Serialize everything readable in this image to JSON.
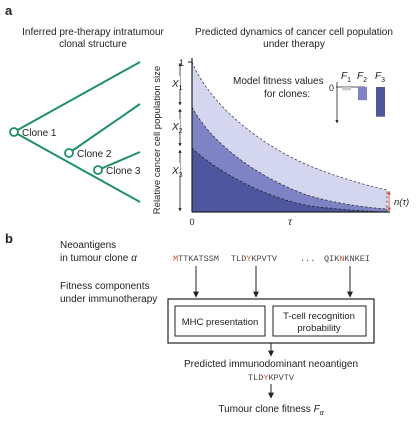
{
  "panel_a": {
    "letter": "a",
    "tree_title_line1": "Inferred pre-therapy intratumour",
    "tree_title_line2": "clonal structure",
    "dyn_title_line1": "Predicted dynamics of cancer cell population",
    "dyn_title_line2": "under therapy",
    "clones": [
      "Clone 1",
      "Clone 2",
      "Clone 3"
    ],
    "y_axis_label": "Relative cancer cell population size",
    "y_tick_one": "1",
    "x_tick_zero": "0",
    "x_tick_tau": "τ",
    "x_labels": [
      {
        "base": "X",
        "sub": "1"
      },
      {
        "base": "X",
        "sub": "2"
      },
      {
        "base": "X",
        "sub": "3"
      }
    ],
    "n_tau_label": "n(τ)",
    "fitness_title_line1": "Model fitness values",
    "fitness_title_line2": "for clones:",
    "fitness_zero": "0",
    "fitness_labels": [
      {
        "base": "F",
        "sub": "1"
      },
      {
        "base": "F",
        "sub": "2"
      },
      {
        "base": "F",
        "sub": "3"
      }
    ],
    "fitness_values": [
      -0.1,
      -0.4,
      -0.9
    ],
    "colors": {
      "tree": "#1e8f6e",
      "band_light": "#d3d6ee",
      "band_mid": "#7d83c4",
      "band_dark": "#4e569e",
      "n_tau": "#d94a3a",
      "f1_bar": "#cfc7c2"
    }
  },
  "panel_b": {
    "letter": "b",
    "neo_line1": "Neoantigens",
    "neo_line2_prefix": "in tumour clone ",
    "neo_alpha": "α",
    "seq1": {
      "pre": "",
      "red": "M",
      "post": "TTKATSSM"
    },
    "seq2": {
      "pre": "TLD",
      "red": "Y",
      "post": "KPVTV"
    },
    "ellipsis": "...",
    "seq3": {
      "pre": "QIK",
      "red": "N",
      "post": "KNKEI"
    },
    "fitness_components_line1": "Fitness components",
    "fitness_components_line2": "under immunotherapy",
    "mhc_label": "MHC presentation",
    "tcell_line1": "T-cell recognition",
    "tcell_line2": "probability",
    "predicted_label": "Predicted immunodominant neoantigen",
    "predicted_seq": {
      "pre": "TLD",
      "red": "Y",
      "post": "KPVTV"
    },
    "tumour_fitness_prefix": "Tumour clone fitness ",
    "tumour_fitness_symbol": "F",
    "tumour_fitness_sub": "α",
    "colors": {
      "highlight": "#d94a3a"
    }
  }
}
